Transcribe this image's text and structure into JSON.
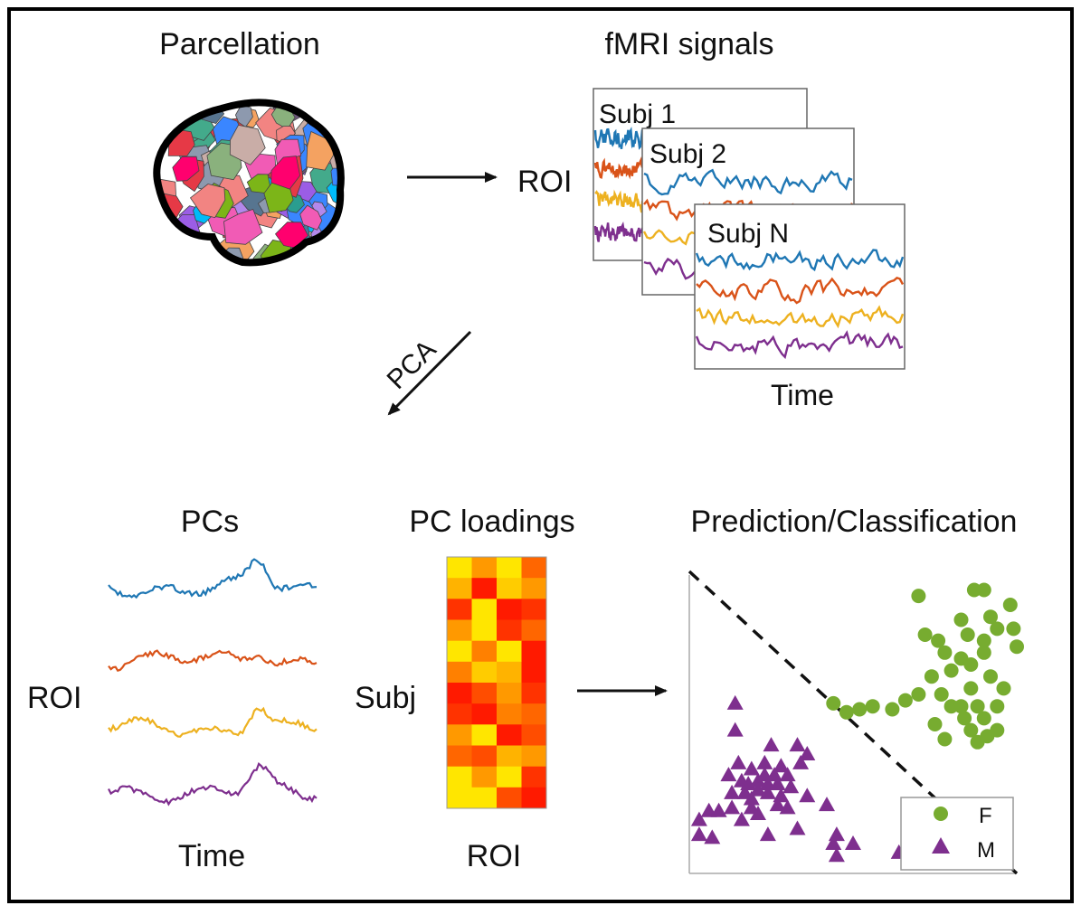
{
  "labels": {
    "parcellation": "Parcellation",
    "fmri_signals": "fMRI signals",
    "roi_top": "ROI",
    "subj_1": "Subj 1",
    "subj_2": "Subj 2",
    "subj_n": "Subj N",
    "time_top": "Time",
    "pca": "PCA",
    "pcs": "PCs",
    "roi_left": "ROI",
    "time_bottom": "Time",
    "pc_loadings": "PC loadings",
    "subj_side": "Subj",
    "roi_heatmap": "ROI",
    "prediction": "Prediction/Classification",
    "legend_f": "F",
    "legend_m": "M"
  },
  "colors": {
    "blue": "#1f77b4",
    "orange": "#d95319",
    "yellow": "#edb120",
    "purple": "#7e2f8e",
    "green": "#77ac30",
    "scatter_purple": "#7e2f8e"
  },
  "icons": {
    "brain": "brain-parcellation-icon",
    "arrow": "right-arrow-icon"
  },
  "heatmap": {
    "colormap": "autumn",
    "values": [
      [
        0.9,
        0.6,
        0.9,
        0.4
      ],
      [
        0.7,
        0.1,
        0.8,
        0.6
      ],
      [
        0.2,
        0.9,
        0.1,
        0.2
      ],
      [
        0.6,
        0.9,
        0.2,
        0.4
      ],
      [
        0.9,
        0.5,
        0.9,
        0.1
      ],
      [
        0.5,
        0.8,
        0.7,
        0.1
      ],
      [
        0.1,
        0.3,
        0.6,
        0.2
      ],
      [
        0.2,
        0.1,
        0.5,
        0.4
      ],
      [
        0.6,
        0.9,
        0.1,
        0.3
      ],
      [
        0.4,
        0.3,
        0.7,
        0.6
      ],
      [
        0.9,
        0.6,
        0.9,
        0.2
      ],
      [
        0.9,
        0.9,
        0.3,
        0.1
      ]
    ]
  },
  "scatter": {
    "F": [
      [
        0.87,
        0.95
      ],
      [
        0.9,
        0.95
      ],
      [
        0.7,
        0.93
      ],
      [
        0.98,
        0.9
      ],
      [
        0.92,
        0.86
      ],
      [
        0.94,
        0.82
      ],
      [
        0.83,
        0.85
      ],
      [
        0.72,
        0.8
      ],
      [
        0.76,
        0.78
      ],
      [
        0.85,
        0.8
      ],
      [
        0.9,
        0.78
      ],
      [
        0.99,
        0.82
      ],
      [
        1.0,
        0.76
      ],
      [
        0.78,
        0.74
      ],
      [
        0.83,
        0.72
      ],
      [
        0.86,
        0.7
      ],
      [
        0.9,
        0.74
      ],
      [
        0.8,
        0.68
      ],
      [
        0.74,
        0.66
      ],
      [
        0.92,
        0.66
      ],
      [
        0.96,
        0.62
      ],
      [
        0.86,
        0.62
      ],
      [
        0.77,
        0.6
      ],
      [
        0.7,
        0.6
      ],
      [
        0.66,
        0.58
      ],
      [
        0.8,
        0.56
      ],
      [
        0.88,
        0.56
      ],
      [
        0.94,
        0.56
      ],
      [
        0.84,
        0.52
      ],
      [
        0.9,
        0.52
      ],
      [
        0.86,
        0.48
      ],
      [
        0.91,
        0.46
      ],
      [
        0.75,
        0.5
      ],
      [
        0.62,
        0.55
      ],
      [
        0.56,
        0.56
      ],
      [
        0.52,
        0.55
      ],
      [
        0.48,
        0.54
      ],
      [
        0.44,
        0.57
      ],
      [
        0.78,
        0.45
      ],
      [
        0.94,
        0.48
      ],
      [
        0.88,
        0.44
      ],
      [
        0.83,
        0.56
      ]
    ],
    "M": [
      [
        0.14,
        0.57
      ],
      [
        0.14,
        0.48
      ],
      [
        0.25,
        0.43
      ],
      [
        0.33,
        0.43
      ],
      [
        0.36,
        0.4
      ],
      [
        0.34,
        0.37
      ],
      [
        0.28,
        0.36
      ],
      [
        0.23,
        0.37
      ],
      [
        0.15,
        0.37
      ],
      [
        0.19,
        0.35
      ],
      [
        0.23,
        0.33
      ],
      [
        0.26,
        0.33
      ],
      [
        0.3,
        0.33
      ],
      [
        0.12,
        0.33
      ],
      [
        0.16,
        0.31
      ],
      [
        0.18,
        0.3
      ],
      [
        0.21,
        0.31
      ],
      [
        0.24,
        0.3
      ],
      [
        0.27,
        0.3
      ],
      [
        0.31,
        0.29
      ],
      [
        0.21,
        0.28
      ],
      [
        0.24,
        0.27
      ],
      [
        0.17,
        0.27
      ],
      [
        0.13,
        0.27
      ],
      [
        0.19,
        0.25
      ],
      [
        0.28,
        0.26
      ],
      [
        0.36,
        0.26
      ],
      [
        0.42,
        0.23
      ],
      [
        0.3,
        0.22
      ],
      [
        0.27,
        0.23
      ],
      [
        0.19,
        0.22
      ],
      [
        0.13,
        0.22
      ],
      [
        0.06,
        0.21
      ],
      [
        0.09,
        0.21
      ],
      [
        0.03,
        0.18
      ],
      [
        0.16,
        0.18
      ],
      [
        0.21,
        0.2
      ],
      [
        0.33,
        0.15
      ],
      [
        0.24,
        0.13
      ],
      [
        0.03,
        0.13
      ],
      [
        0.07,
        0.12
      ],
      [
        0.45,
        0.13
      ],
      [
        0.44,
        0.1
      ],
      [
        0.5,
        0.1
      ],
      [
        0.45,
        0.06
      ],
      [
        0.64,
        0.07
      ]
    ]
  }
}
